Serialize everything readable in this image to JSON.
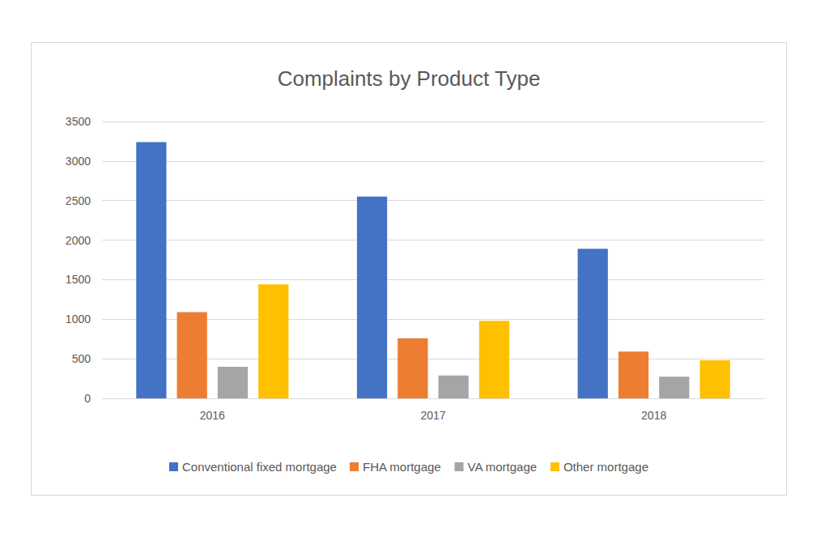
{
  "chart_data": {
    "type": "bar",
    "title": "Complaints by Product Type",
    "categories": [
      "2016",
      "2017",
      "2018"
    ],
    "series": [
      {
        "name": "Conventional fixed mortgage",
        "color": "#4472c4",
        "values": [
          3240,
          2550,
          1890
        ]
      },
      {
        "name": "FHA mortgage",
        "color": "#ed7d31",
        "values": [
          1090,
          760,
          590
        ]
      },
      {
        "name": "VA mortgage",
        "color": "#a5a5a5",
        "values": [
          400,
          290,
          275
        ]
      },
      {
        "name": "Other mortgage",
        "color": "#ffc000",
        "values": [
          1440,
          980,
          480
        ]
      }
    ],
    "ylim": [
      0,
      3500
    ],
    "yticks": [
      0,
      500,
      1000,
      1500,
      2000,
      2500,
      3000,
      3500
    ],
    "grid": true,
    "legend": "bottom"
  }
}
